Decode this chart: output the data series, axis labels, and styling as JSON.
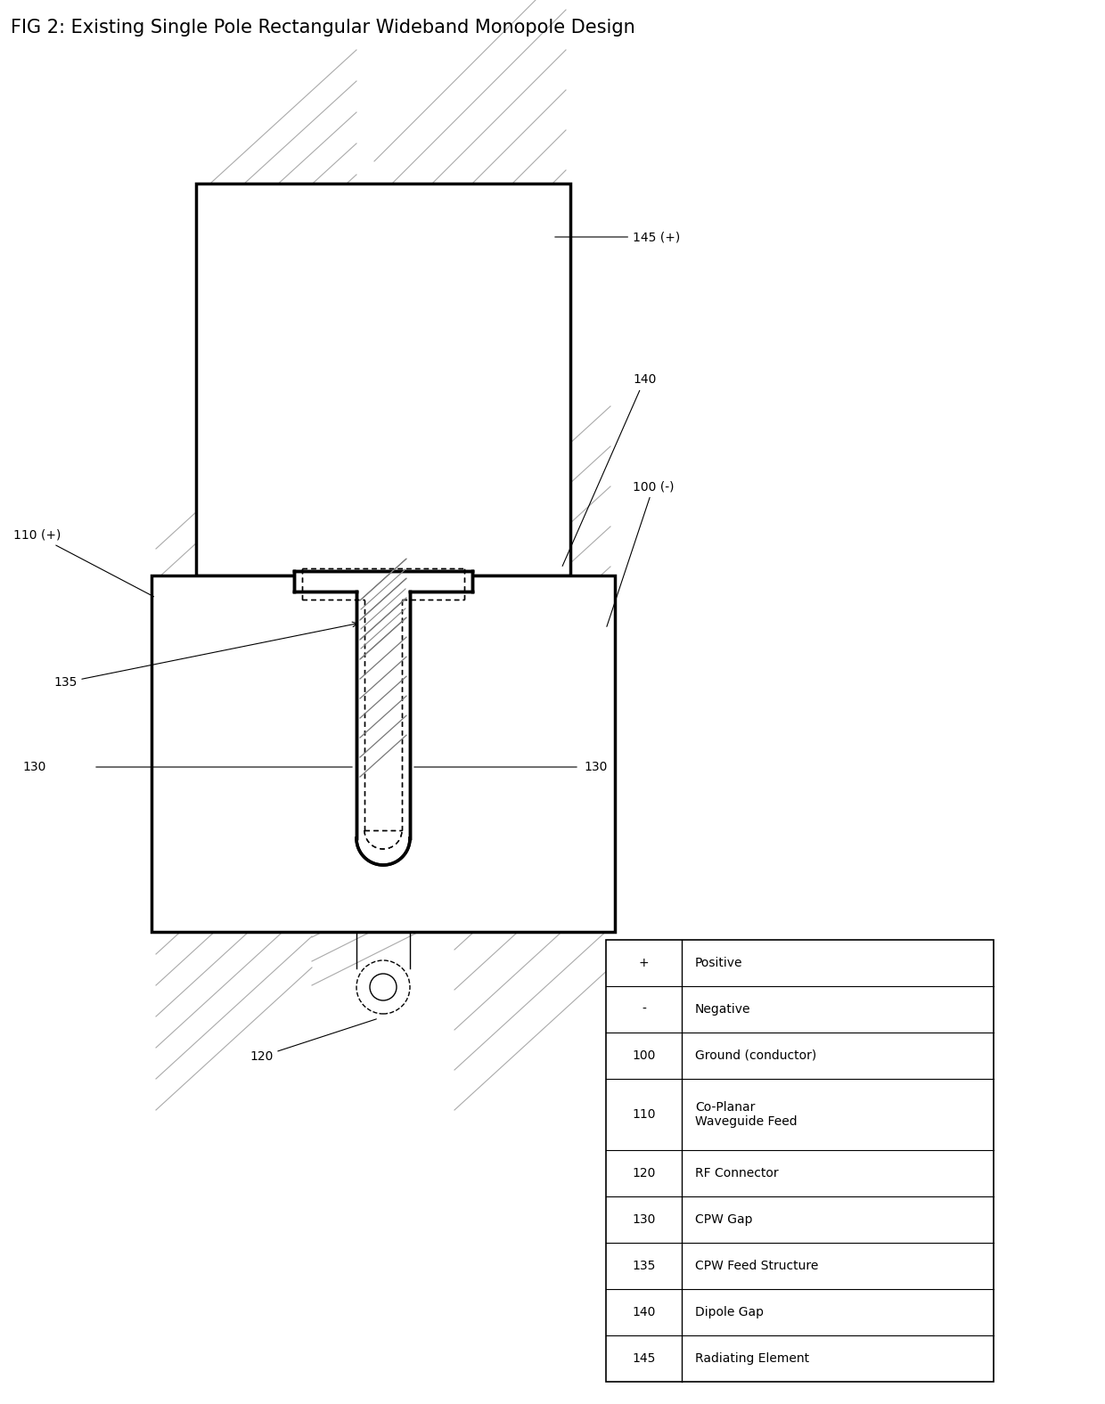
{
  "title": "FIG 2: Existing Single Pole Rectangular Wideband Monopole Design",
  "title_fontsize": 15,
  "bg_color": "#ffffff",
  "line_color": "#000000",
  "legend_entries": [
    [
      "+",
      "Positive"
    ],
    [
      "-",
      "Negative"
    ],
    [
      "100",
      "Ground (conductor)"
    ],
    [
      "110",
      "Co-Planar\nWaveguide Feed"
    ],
    [
      "120",
      "RF Connector"
    ],
    [
      "130",
      "CPW Gap"
    ],
    [
      "135",
      "CPW Feed Structure"
    ],
    [
      "140",
      "Dipole Gap"
    ],
    [
      "145",
      "Radiating Element"
    ]
  ],
  "label_fontsize": 10,
  "annotation_fontsize": 10
}
